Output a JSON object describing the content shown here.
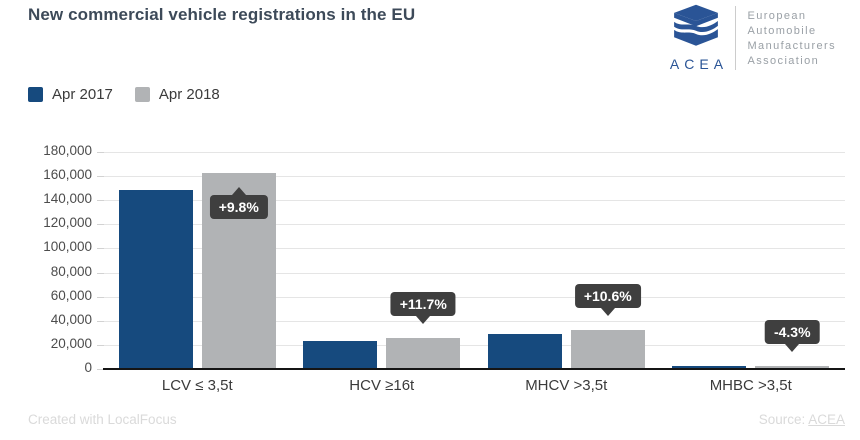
{
  "header": {
    "title": "New commercial vehicle registrations in the EU",
    "logo": {
      "acronym": "ACEA",
      "org_lines": [
        "European",
        "Automobile",
        "Manufacturers",
        "Association"
      ],
      "brand_color": "#2a5496"
    }
  },
  "legend": [
    {
      "label": "Apr 2017",
      "color": "#164a7e"
    },
    {
      "label": "Apr 2018",
      "color": "#b1b3b5"
    }
  ],
  "chart_data": {
    "type": "bar",
    "title": "New commercial vehicle registrations in the EU",
    "categories": [
      "LCV ≤ 3,5t",
      "HCV ≥16t",
      "MHCV >3,5t",
      "MHBC >3,5t"
    ],
    "series": [
      {
        "name": "Apr 2017",
        "color": "#164a7e",
        "values": [
          148100,
          23400,
          29400,
          2460
        ]
      },
      {
        "name": "Apr 2018",
        "color": "#b1b3b5",
        "values": [
          162600,
          26100,
          32500,
          2350
        ]
      }
    ],
    "annotations": [
      {
        "category": "LCV ≤ 3,5t",
        "text": "+9.8%",
        "placement": "inside-top"
      },
      {
        "category": "HCV ≥16t",
        "text": "+11.7%",
        "placement": "above"
      },
      {
        "category": "MHCV >3,5t",
        "text": "+10.6%",
        "placement": "above"
      },
      {
        "category": "MHBC >3,5t",
        "text": "-4.3%",
        "placement": "above"
      }
    ],
    "ylim": [
      0,
      180000
    ],
    "ytick_step": 20000,
    "ytick_labels": [
      "0",
      "20,000",
      "40,000",
      "60,000",
      "80,000",
      "100,000",
      "120,000",
      "140,000",
      "160,000",
      "180,000"
    ],
    "grid": true,
    "legend_position": "top-left",
    "callout_bg": "#3f3f3f"
  },
  "footer": {
    "credit": "Created with LocalFocus",
    "source_label": "Source:",
    "source_link": "ACEA"
  }
}
